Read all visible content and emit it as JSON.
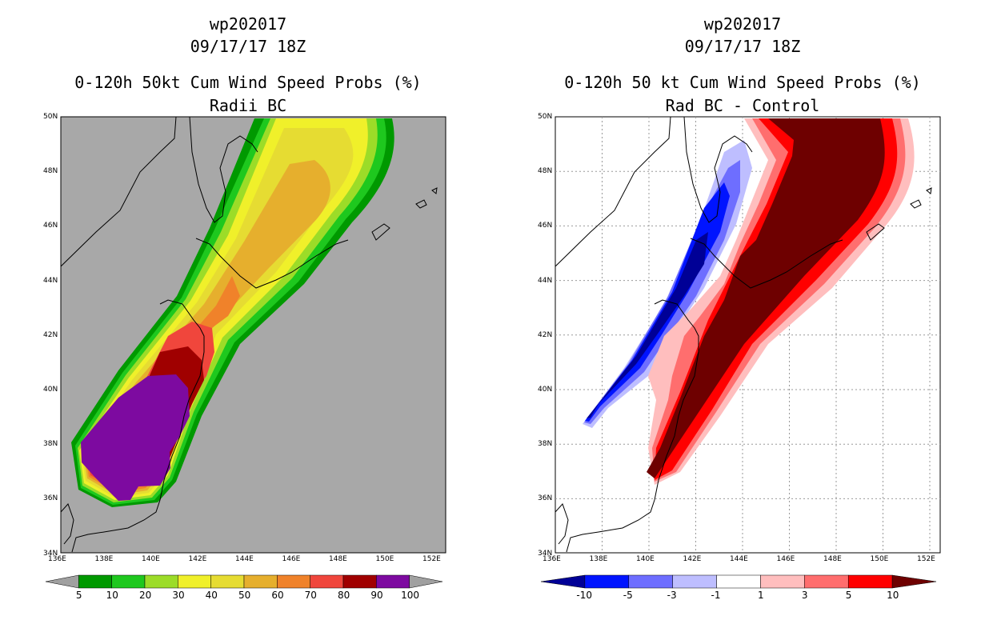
{
  "left_panel": {
    "title_line1": "wp202017",
    "title_line2": "09/17/17 18Z",
    "title_line3": "0-120h 50kt Cum Wind Speed Probs (%)",
    "title_line4": "Radii BC",
    "colorbar": {
      "labels": [
        "5",
        "10",
        "20",
        "30",
        "40",
        "50",
        "60",
        "70",
        "80",
        "90",
        "100"
      ],
      "colors": [
        "#009900",
        "#1ec81e",
        "#9cdc28",
        "#f0f02a",
        "#e6dc32",
        "#e6af2d",
        "#f0822a",
        "#f0463c",
        "#a00000",
        "#7d0aa0",
        "#a0a0a0"
      ]
    },
    "background_color": "#a8a8a8"
  },
  "right_panel": {
    "title_line1": "wp202017",
    "title_line2": "09/17/17 18Z",
    "title_line3": "0-120h 50 kt Cum Wind Speed Probs (%)",
    "title_line4": "Rad BC - Control",
    "colorbar": {
      "labels": [
        "-10",
        "-5",
        "-3",
        "-1",
        "1",
        "3",
        "5",
        "10"
      ],
      "colors": [
        "#000096",
        "#0014ff",
        "#6e6eff",
        "#bebeff",
        "#ffffff",
        "#ffbebe",
        "#ff6e6e",
        "#ff0000",
        "#6e0000"
      ]
    }
  },
  "axes": {
    "lon_labels": [
      "136E",
      "138E",
      "140E",
      "142E",
      "144E",
      "146E",
      "148E",
      "150E",
      "152E"
    ],
    "lat_labels": [
      "50N",
      "48N",
      "46N",
      "44N",
      "42N",
      "40N",
      "38N",
      "36N",
      "34N"
    ]
  }
}
